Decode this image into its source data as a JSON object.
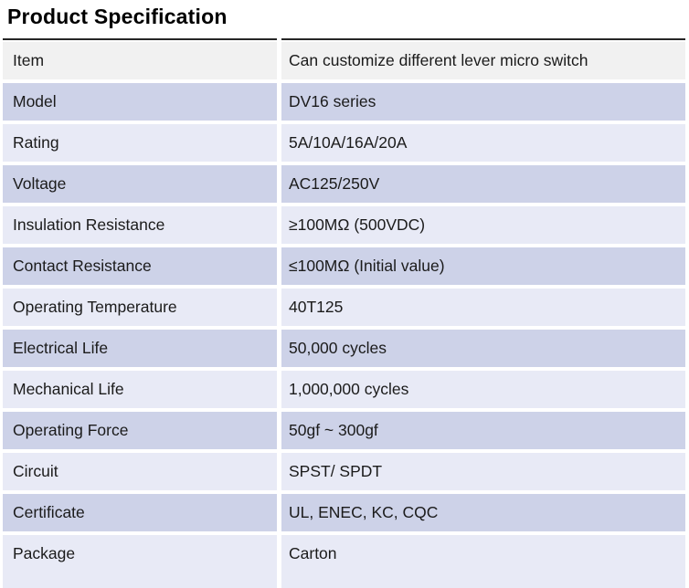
{
  "title": "Product Specification",
  "colors": {
    "row_gray": "#f1f1f1",
    "row_medium": "#cdd2e8",
    "row_light": "#e8eaf6",
    "top_line": "#262626",
    "text": "#1b1b1b"
  },
  "table": {
    "rows": [
      {
        "label": "Item",
        "value": "Can customize different lever micro switch",
        "bg": "gray"
      },
      {
        "label": "Model",
        "value": "DV16 series",
        "bg": "medium"
      },
      {
        "label": "Rating",
        "value": "5A/10A/16A/20A",
        "bg": "light"
      },
      {
        "label": "Voltage",
        "value": "AC125/250V",
        "bg": "medium"
      },
      {
        "label": "Insulation Resistance",
        "value": "≥100MΩ (500VDC)",
        "bg": "light"
      },
      {
        "label": "Contact Resistance",
        "value": "≤100MΩ (Initial value)",
        "bg": "medium"
      },
      {
        "label": "Operating Temperature",
        "value": "40T125",
        "bg": "light"
      },
      {
        "label": "Electrical Life",
        "value": "50,000 cycles",
        "bg": "medium"
      },
      {
        "label": "Mechanical Life",
        "value": "1,000,000 cycles",
        "bg": "light"
      },
      {
        "label": "Operating Force",
        "value": "50gf ~ 300gf",
        "bg": "medium"
      },
      {
        "label": "Circuit",
        "value": "SPST/ SPDT",
        "bg": "light"
      },
      {
        "label": "Certificate",
        "value": "UL, ENEC, KC, CQC",
        "bg": "medium"
      },
      {
        "label": "Package",
        "value": "Carton",
        "bg": "light"
      }
    ]
  }
}
